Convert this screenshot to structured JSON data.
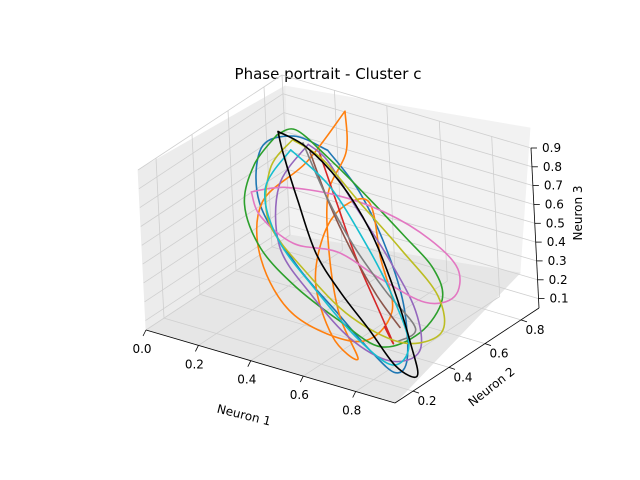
{
  "chart_data": {
    "type": "line",
    "projection": "3d",
    "title": "Phase portrait - Cluster c",
    "xlabel": "Neuron 1",
    "ylabel": "Neuron 2",
    "zlabel": "Neuron 3",
    "xlim": [
      0.0,
      0.95
    ],
    "ylim": [
      0.1,
      0.9
    ],
    "zlim": [
      0.05,
      0.9
    ],
    "xticks": [
      "0.0",
      "0.2",
      "0.4",
      "0.6",
      "0.8"
    ],
    "yticks": [
      "0.2",
      "0.4",
      "0.6",
      "0.8"
    ],
    "zticks": [
      "0.1",
      "0.2",
      "0.3",
      "0.4",
      "0.5",
      "0.6",
      "0.7",
      "0.8",
      "0.9"
    ],
    "grid": true,
    "series": [
      {
        "color": "#1f77b4",
        "points": [
          [
            0.22,
            0.82,
            0.64
          ],
          [
            0.12,
            0.78,
            0.7
          ],
          [
            0.05,
            0.7,
            0.66
          ],
          [
            0.14,
            0.55,
            0.5
          ],
          [
            0.38,
            0.4,
            0.36
          ],
          [
            0.6,
            0.3,
            0.26
          ],
          [
            0.78,
            0.22,
            0.18
          ],
          [
            0.9,
            0.18,
            0.14
          ],
          [
            0.92,
            0.22,
            0.2
          ],
          [
            0.8,
            0.38,
            0.34
          ],
          [
            0.62,
            0.55,
            0.46
          ],
          [
            0.42,
            0.7,
            0.58
          ],
          [
            0.22,
            0.82,
            0.64
          ]
        ]
      },
      {
        "color": "#ff7f0e",
        "points": [
          [
            0.28,
            0.84,
            0.86
          ],
          [
            0.32,
            0.78,
            0.7
          ],
          [
            0.3,
            0.7,
            0.52
          ],
          [
            0.4,
            0.55,
            0.34
          ],
          [
            0.55,
            0.38,
            0.18
          ],
          [
            0.7,
            0.26,
            0.08
          ],
          [
            0.62,
            0.24,
            0.18
          ],
          [
            0.45,
            0.4,
            0.32
          ],
          [
            0.38,
            0.6,
            0.48
          ],
          [
            0.48,
            0.66,
            0.58
          ],
          [
            0.62,
            0.52,
            0.42
          ],
          [
            0.74,
            0.4,
            0.26
          ],
          [
            0.68,
            0.3,
            0.14
          ],
          [
            0.42,
            0.32,
            0.16
          ],
          [
            0.2,
            0.46,
            0.28
          ],
          [
            0.1,
            0.62,
            0.44
          ],
          [
            0.18,
            0.76,
            0.6
          ],
          [
            0.28,
            0.84,
            0.86
          ]
        ]
      },
      {
        "color": "#2ca02c",
        "points": [
          [
            0.04,
            0.8,
            0.66
          ],
          [
            0.02,
            0.7,
            0.56
          ],
          [
            0.06,
            0.58,
            0.44
          ],
          [
            0.2,
            0.46,
            0.34
          ],
          [
            0.4,
            0.36,
            0.28
          ],
          [
            0.62,
            0.28,
            0.24
          ],
          [
            0.82,
            0.22,
            0.22
          ],
          [
            0.96,
            0.24,
            0.34
          ],
          [
            0.98,
            0.34,
            0.46
          ],
          [
            0.88,
            0.44,
            0.52
          ],
          [
            0.7,
            0.54,
            0.56
          ],
          [
            0.48,
            0.66,
            0.6
          ],
          [
            0.26,
            0.76,
            0.66
          ],
          [
            0.1,
            0.82,
            0.7
          ],
          [
            0.04,
            0.8,
            0.66
          ]
        ]
      },
      {
        "color": "#d62728",
        "points": [
          [
            0.2,
            0.8,
            0.64
          ],
          [
            0.36,
            0.66,
            0.52
          ],
          [
            0.54,
            0.5,
            0.4
          ],
          [
            0.72,
            0.36,
            0.28
          ],
          [
            0.84,
            0.26,
            0.22
          ],
          [
            0.78,
            0.3,
            0.26
          ]
        ]
      },
      {
        "color": "#9467bd",
        "points": [
          [
            0.16,
            0.8,
            0.66
          ],
          [
            0.14,
            0.66,
            0.52
          ],
          [
            0.26,
            0.48,
            0.36
          ],
          [
            0.46,
            0.36,
            0.26
          ],
          [
            0.66,
            0.28,
            0.16
          ],
          [
            0.84,
            0.24,
            0.14
          ],
          [
            0.94,
            0.26,
            0.22
          ],
          [
            0.86,
            0.36,
            0.34
          ],
          [
            0.66,
            0.5,
            0.46
          ],
          [
            0.44,
            0.64,
            0.56
          ],
          [
            0.26,
            0.76,
            0.64
          ],
          [
            0.16,
            0.8,
            0.66
          ]
        ]
      },
      {
        "color": "#8c564b",
        "points": [
          [
            0.18,
            0.78,
            0.64
          ],
          [
            0.34,
            0.64,
            0.54
          ],
          [
            0.52,
            0.5,
            0.44
          ],
          [
            0.7,
            0.38,
            0.34
          ],
          [
            0.84,
            0.3,
            0.28
          ]
        ]
      },
      {
        "color": "#e377c2",
        "points": [
          [
            0.06,
            0.62,
            0.48
          ],
          [
            0.12,
            0.58,
            0.4
          ],
          [
            0.3,
            0.5,
            0.38
          ],
          [
            0.5,
            0.46,
            0.44
          ],
          [
            0.7,
            0.4,
            0.42
          ],
          [
            0.9,
            0.36,
            0.4
          ],
          [
            1.0,
            0.38,
            0.46
          ],
          [
            0.96,
            0.46,
            0.54
          ],
          [
            0.8,
            0.54,
            0.58
          ],
          [
            0.58,
            0.62,
            0.58
          ],
          [
            0.36,
            0.66,
            0.56
          ],
          [
            0.16,
            0.66,
            0.52
          ],
          [
            0.06,
            0.62,
            0.48
          ]
        ]
      },
      {
        "color": "#7f7f7f",
        "points": [
          [
            0.14,
            0.8,
            0.66
          ],
          [
            0.32,
            0.66,
            0.54
          ],
          [
            0.52,
            0.52,
            0.44
          ],
          [
            0.72,
            0.4,
            0.36
          ],
          [
            0.9,
            0.3,
            0.3
          ],
          [
            0.86,
            0.26,
            0.24
          ]
        ]
      },
      {
        "color": "#bcbd22",
        "points": [
          [
            0.1,
            0.8,
            0.66
          ],
          [
            0.08,
            0.7,
            0.56
          ],
          [
            0.18,
            0.54,
            0.42
          ],
          [
            0.4,
            0.42,
            0.32
          ],
          [
            0.64,
            0.32,
            0.24
          ],
          [
            0.88,
            0.26,
            0.24
          ],
          [
            1.0,
            0.3,
            0.32
          ],
          [
            0.92,
            0.4,
            0.42
          ],
          [
            0.7,
            0.52,
            0.5
          ],
          [
            0.46,
            0.64,
            0.58
          ],
          [
            0.24,
            0.76,
            0.64
          ],
          [
            0.1,
            0.8,
            0.66
          ]
        ]
      },
      {
        "color": "#17becf",
        "points": [
          [
            0.12,
            0.76,
            0.64
          ],
          [
            0.1,
            0.64,
            0.5
          ],
          [
            0.24,
            0.5,
            0.38
          ],
          [
            0.46,
            0.38,
            0.28
          ],
          [
            0.68,
            0.28,
            0.18
          ],
          [
            0.86,
            0.22,
            0.14
          ],
          [
            0.9,
            0.26,
            0.24
          ],
          [
            0.74,
            0.4,
            0.36
          ],
          [
            0.54,
            0.54,
            0.48
          ],
          [
            0.32,
            0.68,
            0.58
          ],
          [
            0.12,
            0.76,
            0.64
          ]
        ]
      },
      {
        "color": "#000000",
        "points": [
          [
            0.06,
            0.78,
            0.7
          ],
          [
            0.12,
            0.72,
            0.64
          ],
          [
            0.24,
            0.62,
            0.5
          ],
          [
            0.4,
            0.48,
            0.38
          ],
          [
            0.56,
            0.38,
            0.3
          ],
          [
            0.72,
            0.3,
            0.22
          ],
          [
            0.86,
            0.24,
            0.12
          ],
          [
            0.94,
            0.24,
            0.1
          ],
          [
            0.88,
            0.3,
            0.2
          ],
          [
            0.72,
            0.44,
            0.36
          ],
          [
            0.54,
            0.58,
            0.5
          ],
          [
            0.36,
            0.68,
            0.62
          ],
          [
            0.18,
            0.76,
            0.68
          ],
          [
            0.06,
            0.78,
            0.7
          ]
        ]
      }
    ]
  }
}
